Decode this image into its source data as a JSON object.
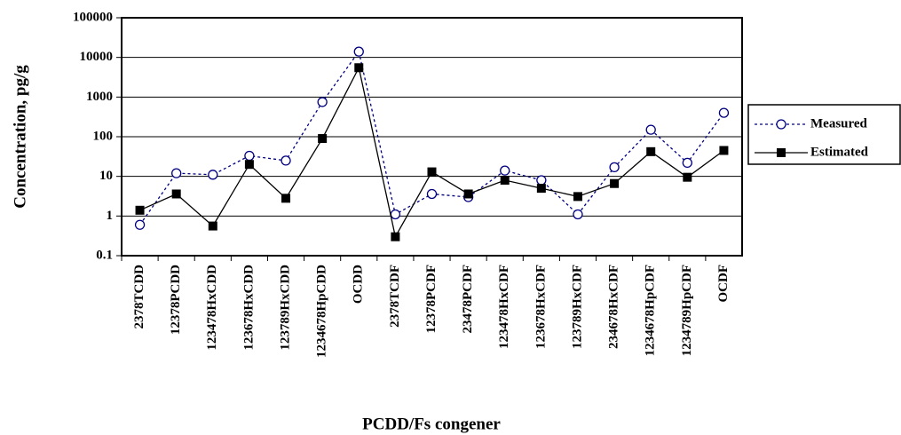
{
  "chart_data": {
    "type": "line",
    "x_label": "PCDD/Fs congener",
    "y_label": "Concentration, pg/g",
    "categories": [
      "2378TCDD",
      "12378PCDD",
      "123478HxCDD",
      "123678HxCDD",
      "123789HxCDD",
      "1234678HpCDD",
      "OCDD",
      "2378TCDF",
      "12378PCDF",
      "23478PCDF",
      "123478HxCDF",
      "123678HxCDF",
      "123789HxCDF",
      "234678HxCDF",
      "1234678HpCDF",
      "1234789HpCDF",
      "OCDF"
    ],
    "series": [
      {
        "name": "Measured",
        "color": "#000080",
        "dash": "dotted",
        "marker": "circle",
        "values": [
          0.6,
          12,
          11,
          33,
          25,
          750,
          14000,
          1.1,
          3.6,
          3,
          14,
          8,
          1.1,
          17,
          150,
          22,
          400
        ]
      },
      {
        "name": "Estimated",
        "color": "#000000",
        "dash": "solid",
        "marker": "square",
        "values": [
          1.4,
          3.6,
          0.56,
          20,
          2.8,
          90,
          5500,
          0.3,
          13,
          3.6,
          8,
          5,
          3.1,
          6.6,
          42,
          9.5,
          45
        ]
      }
    ],
    "log_y": true,
    "ylim": [
      0.1,
      100000
    ],
    "yticks": [
      0.1,
      1,
      10,
      100,
      1000,
      10000,
      100000
    ],
    "grid": true,
    "legend": "right"
  }
}
